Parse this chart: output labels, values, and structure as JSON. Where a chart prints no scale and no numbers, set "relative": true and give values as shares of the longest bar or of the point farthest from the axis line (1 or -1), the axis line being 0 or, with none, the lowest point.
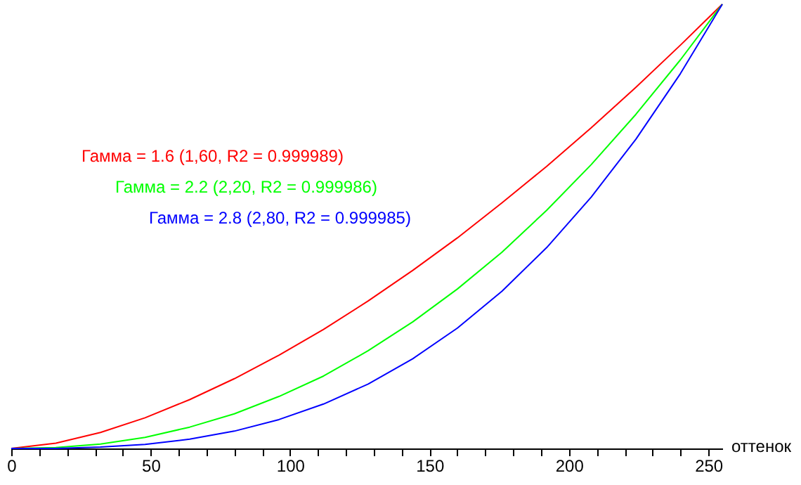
{
  "chart_data": {
    "type": "line",
    "relative": true,
    "xlabel": "оттенок",
    "legend": "top left",
    "grid": false,
    "marker": "none",
    "line_style": "solid",
    "x": [
      0,
      16,
      32,
      48,
      64,
      80,
      96,
      112,
      128,
      144,
      160,
      176,
      192,
      208,
      224,
      240,
      255
    ],
    "xlim": [
      0,
      255
    ],
    "xticks": [
      0,
      {
        "value": 10,
        "label": null
      },
      {
        "value": 20,
        "label": null
      },
      {
        "value": 30,
        "label": null
      },
      {
        "value": 40,
        "label": null
      },
      50,
      {
        "value": 60,
        "label": null
      },
      {
        "value": 70,
        "label": null
      },
      {
        "value": 80,
        "label": null
      },
      {
        "value": 90,
        "label": null
      },
      100,
      {
        "value": 110,
        "label": null
      },
      {
        "value": 120,
        "label": null
      },
      {
        "value": 130,
        "label": null
      },
      {
        "value": 140,
        "label": null
      },
      150,
      {
        "value": 160,
        "label": null
      },
      {
        "value": 170,
        "label": null
      },
      {
        "value": 180,
        "label": null
      },
      {
        "value": 190,
        "label": null
      },
      200,
      {
        "value": 210,
        "label": null
      },
      {
        "value": 220,
        "label": null
      },
      {
        "value": 230,
        "label": null
      },
      {
        "value": 240,
        "label": null
      },
      250
    ],
    "series": [
      {
        "name": "Гамма = 1.6 (1,60, R2 = 0.999989)",
        "color": "#ff0000",
        "values": [
          0,
          0.012,
          0.036,
          0.069,
          0.11,
          0.157,
          0.21,
          0.268,
          0.332,
          0.401,
          0.474,
          0.553,
          0.635,
          0.722,
          0.813,
          0.908,
          1
        ]
      },
      {
        "name": "Гамма = 2.2 (2,20, R2 = 0.999986)",
        "color": "#00ff00",
        "values": [
          0,
          0.002,
          0.01,
          0.025,
          0.048,
          0.078,
          0.117,
          0.163,
          0.22,
          0.285,
          0.359,
          0.442,
          0.536,
          0.639,
          0.752,
          0.875,
          1
        ]
      },
      {
        "name": "Гамма = 2.8 (2,80, R2 = 0.999985)",
        "color": "#0000ff",
        "values": [
          0,
          0.0,
          0.003,
          0.009,
          0.021,
          0.039,
          0.065,
          0.1,
          0.145,
          0.202,
          0.271,
          0.354,
          0.452,
          0.566,
          0.696,
          0.844,
          1
        ]
      }
    ]
  }
}
